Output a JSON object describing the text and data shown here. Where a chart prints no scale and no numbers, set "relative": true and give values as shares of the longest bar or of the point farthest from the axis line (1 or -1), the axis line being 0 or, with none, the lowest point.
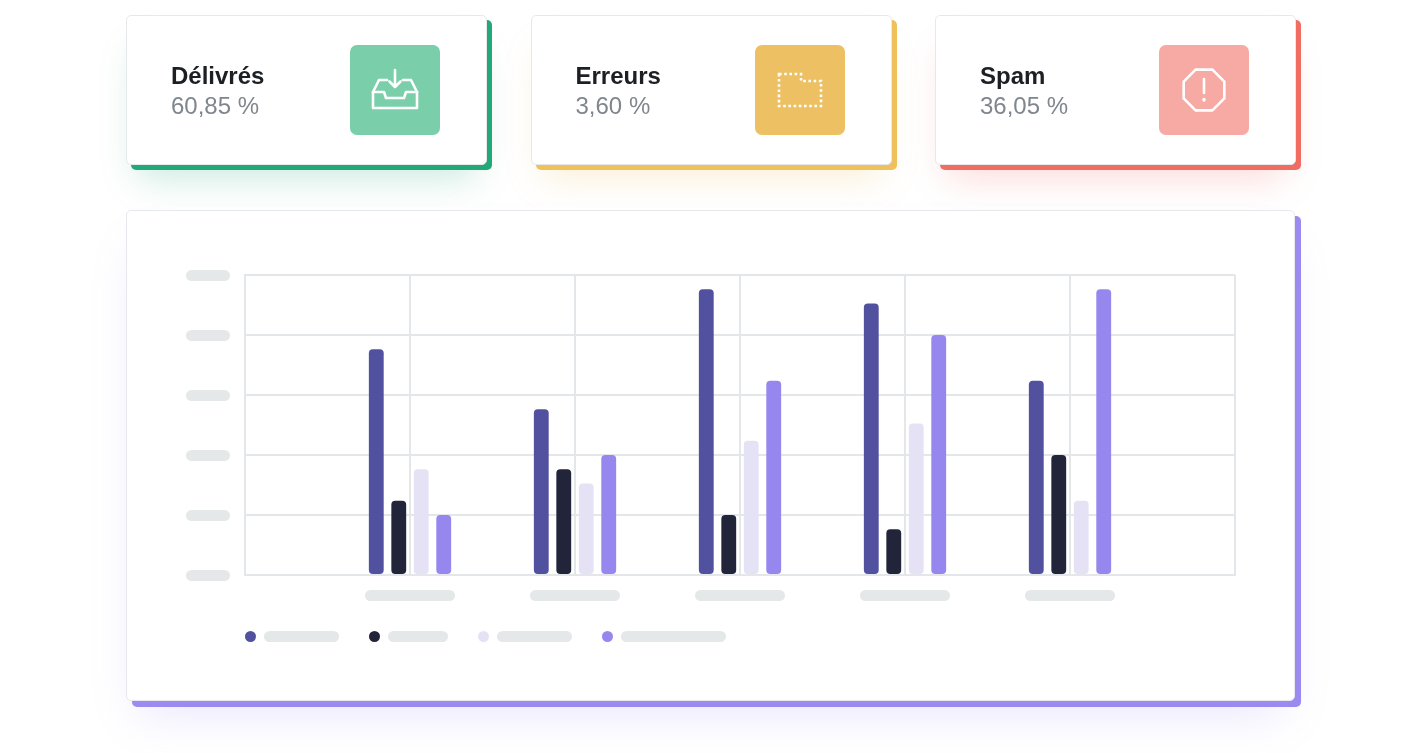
{
  "chart_data": [
    {
      "type": "other",
      "title": "Délivrés",
      "subtitle": "60,85 %"
    },
    {
      "type": "other",
      "title": "Erreurs",
      "subtitle": "3,60 %"
    },
    {
      "type": "other",
      "title": "Spam",
      "subtitle": "36,05 %"
    },
    {
      "type": "bar",
      "categories": [
        null,
        null,
        null,
        null,
        null
      ],
      "relative": true,
      "series": [
        {
          "color": "#5251a0",
          "values": [
            0.79,
            0.58,
            1,
            0.95,
            0.68
          ]
        },
        {
          "color": "#22243a",
          "values": [
            0.26,
            0.37,
            0.21,
            0.16,
            0.42
          ]
        },
        {
          "color": "#e6e2f6",
          "values": [
            0.37,
            0.32,
            0.47,
            0.53,
            0.26
          ]
        },
        {
          "color": "#9687ef",
          "values": [
            0.21,
            0.42,
            0.68,
            0.84,
            1
          ]
        }
      ],
      "grid": true,
      "tick_labels": false
    }
  ]
}
